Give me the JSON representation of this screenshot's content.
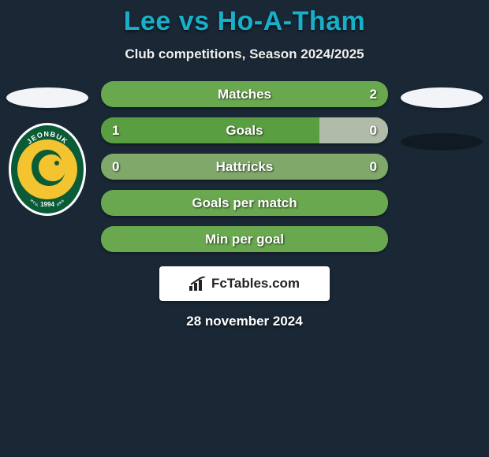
{
  "title_color": "#18b0c9",
  "bg_color": "#1a2836",
  "player_a": "Lee",
  "player_b": "Ho-A-Tham",
  "subtitle": "Club competitions, Season 2024/2025",
  "date": "28 november 2024",
  "brand": "FcTables.com",
  "left_badge": {
    "outer_color": "#0a5c36",
    "inner_color": "#f4c430",
    "text_top": "JEONBUK",
    "text_mid": "HYUNDAI MOTORS",
    "year": "1994"
  },
  "pill_colors": {
    "neutral": "#6aa84f",
    "left_win": "#3a7d2f",
    "right_zero": "#a8b8a0",
    "draw": "#7aa564"
  },
  "stats": [
    {
      "label": "Matches",
      "left_val": "",
      "right_val": "2",
      "left_pct": 0,
      "right_pct": 0,
      "bg": "#6aa84f",
      "left_color": "#6aa84f",
      "right_color": "#6aa84f"
    },
    {
      "label": "Goals",
      "left_val": "1",
      "right_val": "0",
      "left_pct": 76,
      "right_pct": 24,
      "bg": "#6aa84f",
      "left_color": "#5a9e42",
      "right_color": "#b0bca8"
    },
    {
      "label": "Hattricks",
      "left_val": "0",
      "right_val": "0",
      "left_pct": 0,
      "right_pct": 0,
      "bg": "#7fa86a",
      "left_color": "#7fa86a",
      "right_color": "#7fa86a"
    },
    {
      "label": "Goals per match",
      "left_val": "",
      "right_val": "",
      "left_pct": 0,
      "right_pct": 0,
      "bg": "#6aa84f",
      "left_color": "#6aa84f",
      "right_color": "#6aa84f"
    },
    {
      "label": "Min per goal",
      "left_val": "",
      "right_val": "",
      "left_pct": 0,
      "right_pct": 0,
      "bg": "#6aa84f",
      "left_color": "#6aa84f",
      "right_color": "#6aa84f"
    }
  ]
}
